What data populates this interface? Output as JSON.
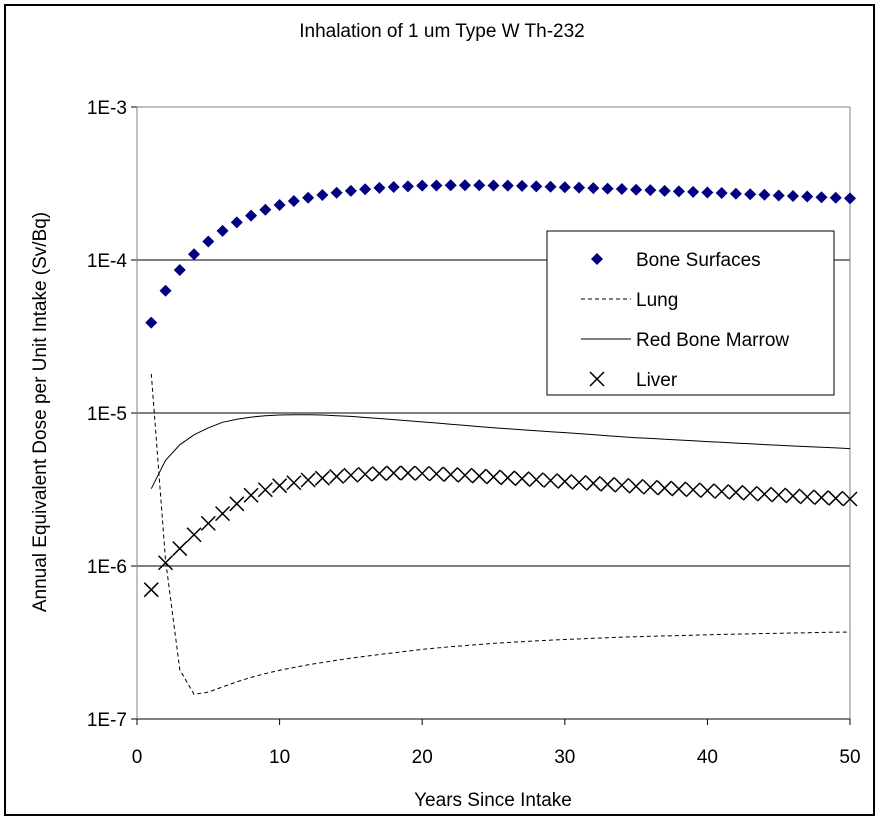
{
  "chart_data": {
    "type": "scatter",
    "title": "Inhalation of 1 um Type W Th-232",
    "xlabel": "Years Since Intake",
    "ylabel": "Annual Equivalent Dose per Unit Intake (Sv/Bq)",
    "xlim": [
      0,
      50
    ],
    "ylim": [
      1e-07,
      0.001
    ],
    "yscale": "log",
    "xticks": [
      "0",
      "10",
      "20",
      "30",
      "40",
      "50"
    ],
    "yticks": [
      "1E-7",
      "1E-6",
      "1E-5",
      "1E-4",
      "1E-3"
    ],
    "grid": "horizontal major lines",
    "legend_position": "right",
    "x": [
      1,
      2,
      3,
      4,
      5,
      6,
      7,
      8,
      9,
      10,
      11,
      12,
      13,
      14,
      15,
      16,
      17,
      18,
      19,
      20,
      21,
      22,
      23,
      24,
      25,
      26,
      27,
      28,
      29,
      30,
      31,
      32,
      33,
      34,
      35,
      36,
      37,
      38,
      39,
      40,
      41,
      42,
      43,
      44,
      45,
      46,
      47,
      48,
      49,
      50
    ],
    "series": [
      {
        "name": "Bone Surfaces",
        "marker": "diamond",
        "color": "#000080",
        "values": [
          3.9e-05,
          6.3e-05,
          8.6e-05,
          0.000109,
          0.000132,
          0.000155,
          0.000176,
          0.000195,
          0.000213,
          0.000229,
          0.000243,
          0.000255,
          0.000266,
          0.000275,
          0.000283,
          0.00029,
          0.000296,
          0.0003,
          0.000303,
          0.000306,
          0.000307,
          0.000308,
          0.000308,
          0.000308,
          0.000307,
          0.000306,
          0.000305,
          0.000303,
          0.000301,
          0.000299,
          0.000297,
          0.000295,
          0.000293,
          0.000291,
          0.000288,
          0.000286,
          0.000283,
          0.000281,
          0.000279,
          0.000276,
          0.000274,
          0.000271,
          0.000269,
          0.000267,
          0.000264,
          0.000262,
          0.00026,
          0.000257,
          0.000255,
          0.000253
        ]
      },
      {
        "name": "Lung",
        "marker": "dashed line",
        "color": "#000000",
        "values": [
          1.8e-05,
          1.1e-06,
          2.1e-07,
          1.45e-07,
          1.5e-07,
          1.62e-07,
          1.75e-07,
          1.87e-07,
          1.98e-07,
          2.08e-07,
          2.17e-07,
          2.26e-07,
          2.34e-07,
          2.42e-07,
          2.5e-07,
          2.57e-07,
          2.64e-07,
          2.71e-07,
          2.78e-07,
          2.85e-07,
          2.91e-07,
          2.97e-07,
          3.02e-07,
          3.07e-07,
          3.12e-07,
          3.16e-07,
          3.2e-07,
          3.24e-07,
          3.28e-07,
          3.31e-07,
          3.34e-07,
          3.37e-07,
          3.4e-07,
          3.43e-07,
          3.45e-07,
          3.47e-07,
          3.49e-07,
          3.51e-07,
          3.53e-07,
          3.55e-07,
          3.57e-07,
          3.59e-07,
          3.6e-07,
          3.62e-07,
          3.63e-07,
          3.65e-07,
          3.66e-07,
          3.68e-07,
          3.69e-07,
          3.7e-07
        ]
      },
      {
        "name": "Red Bone Marrow",
        "marker": "solid line",
        "color": "#000000",
        "values": [
          3.2e-06,
          4.9e-06,
          6.2e-06,
          7.2e-06,
          8e-06,
          8.7e-06,
          9.1e-06,
          9.4e-06,
          9.6e-06,
          9.7e-06,
          9.75e-06,
          9.75e-06,
          9.7e-06,
          9.6e-06,
          9.5e-06,
          9.35e-06,
          9.2e-06,
          9.05e-06,
          8.9e-06,
          8.75e-06,
          8.6e-06,
          8.45e-06,
          8.3e-06,
          8.15e-06,
          8e-06,
          7.9e-06,
          7.78e-06,
          7.66e-06,
          7.55e-06,
          7.44e-06,
          7.33e-06,
          7.22e-06,
          7.11e-06,
          7e-06,
          6.9e-06,
          6.82e-06,
          6.74e-06,
          6.66e-06,
          6.58e-06,
          6.5e-06,
          6.43e-06,
          6.36e-06,
          6.29e-06,
          6.22e-06,
          6.15e-06,
          6.09e-06,
          6.03e-06,
          5.97e-06,
          5.91e-06,
          5.85e-06
        ]
      },
      {
        "name": "Liver",
        "marker": "x",
        "color": "#000000",
        "values": [
          7e-07,
          1.05e-06,
          1.3e-06,
          1.6e-06,
          1.9e-06,
          2.2e-06,
          2.55e-06,
          2.9e-06,
          3.15e-06,
          3.35e-06,
          3.5e-06,
          3.65e-06,
          3.75e-06,
          3.85e-06,
          3.92e-06,
          3.98e-06,
          4.02e-06,
          4.05e-06,
          4.05e-06,
          4.03e-06,
          4e-06,
          3.96e-06,
          3.92e-06,
          3.87e-06,
          3.82e-06,
          3.77e-06,
          3.72e-06,
          3.67e-06,
          3.62e-06,
          3.57e-06,
          3.52e-06,
          3.47e-06,
          3.42e-06,
          3.37e-06,
          3.32e-06,
          3.27e-06,
          3.23e-06,
          3.19e-06,
          3.15e-06,
          3.11e-06,
          3.07e-06,
          3.03e-06,
          2.99e-06,
          2.95e-06,
          2.91e-06,
          2.87e-06,
          2.83e-06,
          2.8e-06,
          2.77e-06,
          2.74e-06
        ]
      }
    ]
  }
}
